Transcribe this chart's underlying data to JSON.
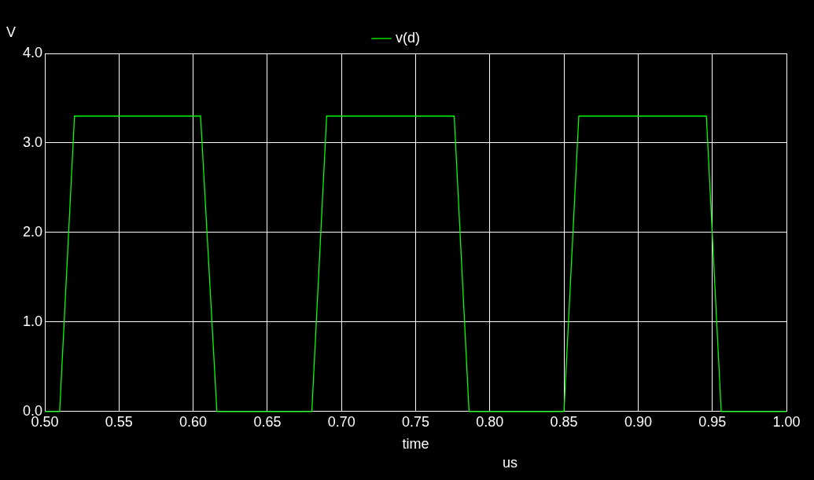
{
  "chart_data": {
    "type": "line",
    "xlabel": "time",
    "ylabel": "V",
    "annotations": [
      "us"
    ],
    "series": [
      {
        "name": "v(d)",
        "color": "#00ff00",
        "x": [
          0.5,
          0.51,
          0.52,
          0.605,
          0.616,
          0.68,
          0.69,
          0.776,
          0.786,
          0.85,
          0.86,
          0.946,
          0.956,
          1.0
        ],
        "values": [
          0,
          0,
          3.3,
          3.3,
          0,
          0,
          3.3,
          3.3,
          0,
          0,
          3.3,
          3.3,
          0,
          0
        ]
      }
    ],
    "xlim": [
      0.5,
      1.0
    ],
    "xticks": [
      {
        "value": 0.5,
        "label": "0.50"
      },
      {
        "value": 0.55,
        "label": "0.55"
      },
      {
        "value": 0.6,
        "label": "0.60"
      },
      {
        "value": 0.65,
        "label": "0.65"
      },
      {
        "value": 0.7,
        "label": "0.70"
      },
      {
        "value": 0.75,
        "label": "0.75"
      },
      {
        "value": 0.8,
        "label": "0.80"
      },
      {
        "value": 0.85,
        "label": "0.85"
      },
      {
        "value": 0.9,
        "label": "0.90"
      },
      {
        "value": 0.95,
        "label": "0.95"
      },
      {
        "value": 1.0,
        "label": "1.00"
      }
    ],
    "ylim": [
      0,
      4.0
    ],
    "yticks": [
      {
        "value": 0,
        "label": "0.0"
      },
      {
        "value": 1,
        "label": "1.0"
      },
      {
        "value": 2,
        "label": "2.0"
      },
      {
        "value": 3,
        "label": "3.0"
      },
      {
        "value": 4,
        "label": "4.0"
      }
    ],
    "grid": true,
    "legend": "top",
    "marker": "none",
    "line_style": "solid"
  }
}
